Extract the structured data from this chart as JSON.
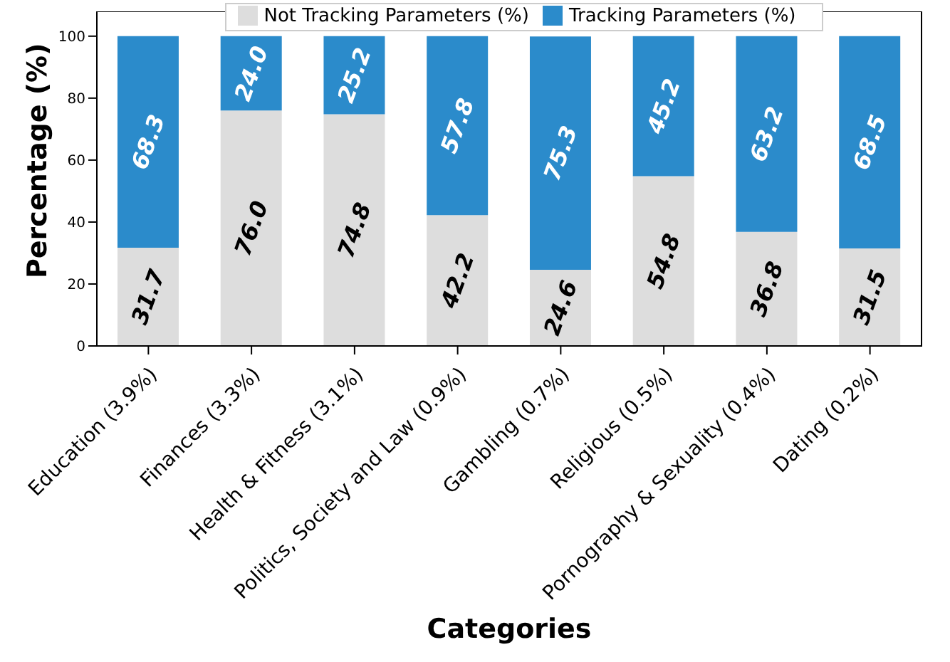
{
  "chart_data": {
    "type": "bar",
    "stacked": true,
    "xlabel": "Categories",
    "ylabel": "Percentage (%)",
    "categories": [
      "Education (3.9%)",
      "Finances (3.3%)",
      "Health & Fitness (3.1%)",
      "Politics, Society and Law (0.9%)",
      "Gambling (0.7%)",
      "Religious (0.5%)",
      "Pornography & Sexuality (0.4%)",
      "Dating (0.2%)"
    ],
    "series": [
      {
        "name": "Not Tracking Parameters (%)",
        "color": "#dddddd",
        "values": [
          31.7,
          76.0,
          74.8,
          42.2,
          24.6,
          54.8,
          36.8,
          31.5
        ],
        "value_labels": [
          "31.7",
          "76.0",
          "74.8",
          "42.2",
          "24.6",
          "54.8",
          "36.8",
          "31.5"
        ]
      },
      {
        "name": "Tracking Parameters (%)",
        "color": "#2b8bcb",
        "values": [
          68.3,
          24.0,
          25.2,
          57.8,
          75.3,
          45.2,
          63.2,
          68.5
        ],
        "value_labels": [
          "68.3",
          "24.0",
          "25.2",
          "57.8",
          "75.3",
          "45.2",
          "63.2",
          "68.5"
        ]
      }
    ],
    "ylim": [
      0,
      108
    ],
    "yticks": [
      0,
      20,
      40,
      60,
      80,
      100
    ],
    "grid": false,
    "legend": "top"
  }
}
